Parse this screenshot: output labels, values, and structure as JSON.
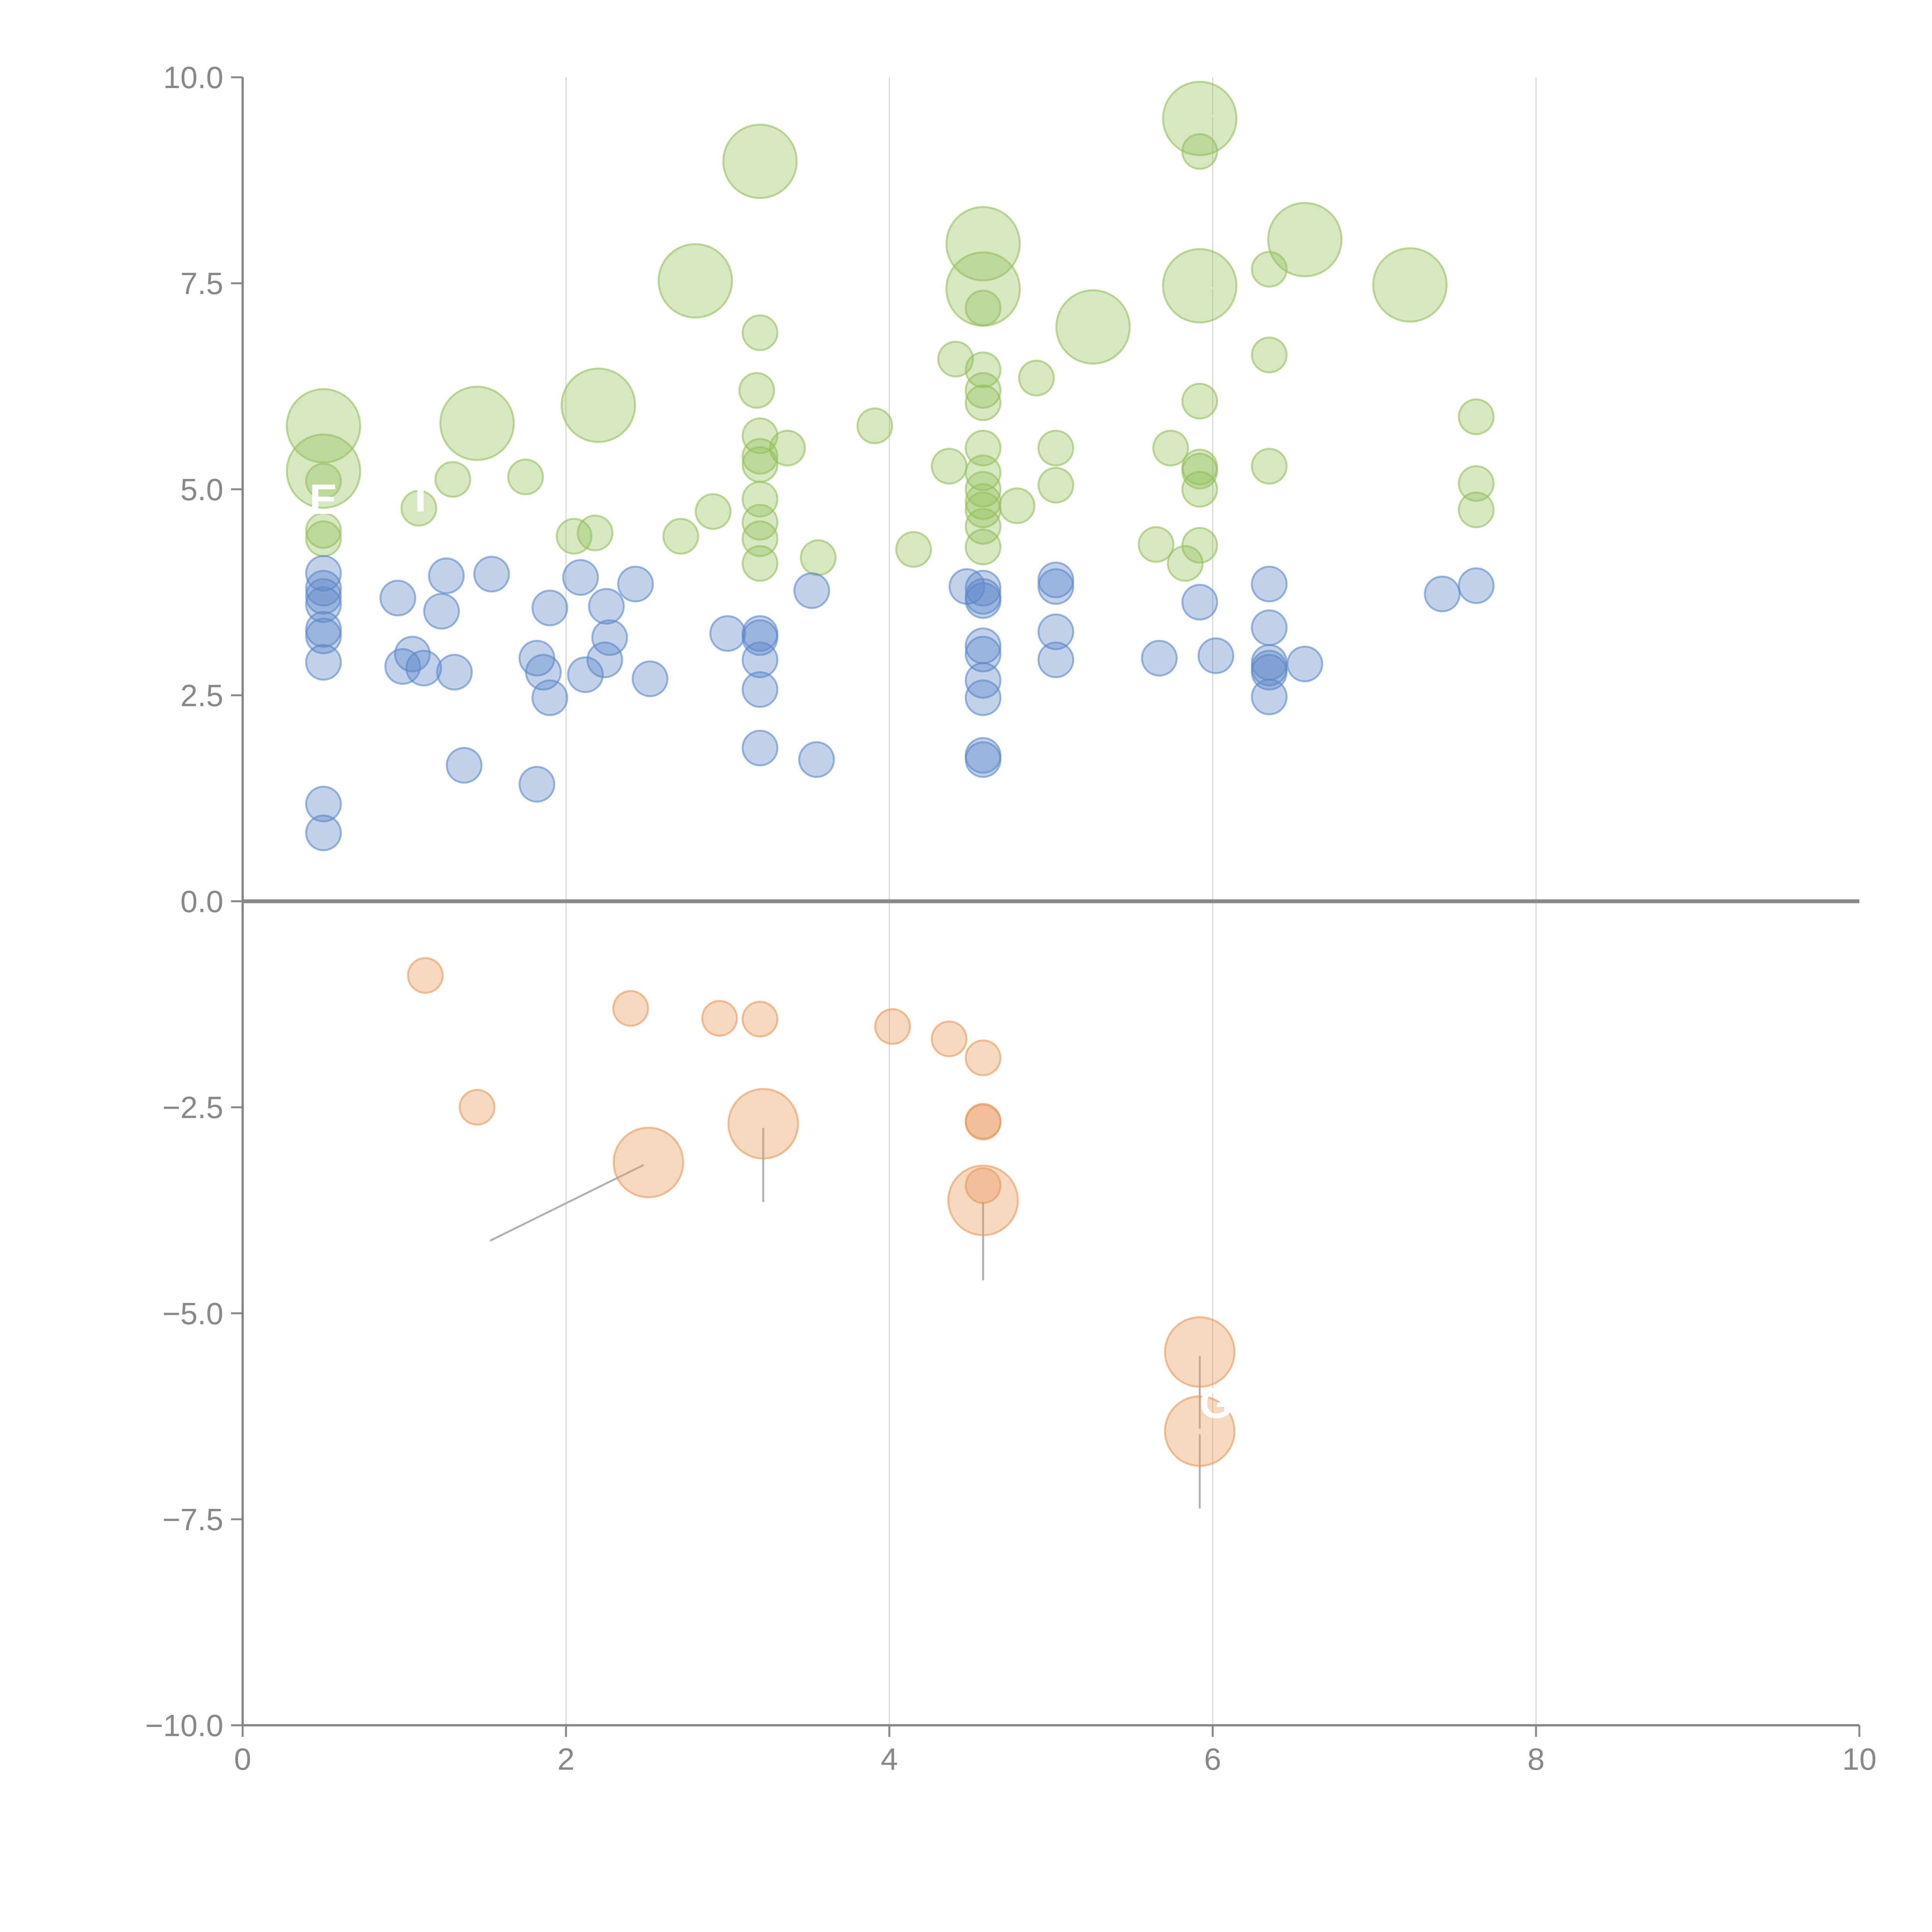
{
  "chart_data": {
    "type": "scatter",
    "title": "",
    "xlabel": "",
    "ylabel": "",
    "xlim": [
      0,
      10
    ],
    "ylim": [
      -10,
      10
    ],
    "x_ticks": [
      "0",
      "2",
      "4",
      "6",
      "8",
      "10"
    ],
    "y_ticks": [
      "10.0",
      "7.5",
      "5.0",
      "2.5",
      "0.0",
      "−2.5",
      "−5.0",
      "−7.5",
      "−10.0"
    ],
    "grid": "vertical lines at even x values",
    "colors": {
      "green": "#93bf5c",
      "blue": "#5b87c7",
      "orange": "#e6995a",
      "axis": "#888888"
    },
    "series": [
      {
        "color_key": "green",
        "points": [
          {
            "x": 0.5,
            "y": 5.77,
            "s": 3
          },
          {
            "x": 0.5,
            "y": 5.22,
            "s": 3
          },
          {
            "x": 0.5,
            "y": 5.1,
            "s": 1
          },
          {
            "x": 0.5,
            "y": 4.5,
            "s": 1
          },
          {
            "x": 0.5,
            "y": 4.4,
            "s": 1
          },
          {
            "x": 1.09,
            "y": 4.77,
            "s": 1
          },
          {
            "x": 1.3,
            "y": 5.12,
            "s": 1
          },
          {
            "x": 1.45,
            "y": 5.8,
            "s": 3
          },
          {
            "x": 1.75,
            "y": 5.15,
            "s": 1
          },
          {
            "x": 2.05,
            "y": 4.43,
            "s": 1
          },
          {
            "x": 2.18,
            "y": 4.47,
            "s": 1
          },
          {
            "x": 2.2,
            "y": 6.02,
            "s": 3
          },
          {
            "x": 2.71,
            "y": 4.43,
            "s": 1
          },
          {
            "x": 2.8,
            "y": 7.53,
            "s": 3
          },
          {
            "x": 2.91,
            "y": 4.73,
            "s": 1
          },
          {
            "x": 3.2,
            "y": 8.98,
            "s": 3
          },
          {
            "x": 3.2,
            "y": 6.9,
            "s": 1
          },
          {
            "x": 3.18,
            "y": 6.2,
            "s": 1
          },
          {
            "x": 3.2,
            "y": 5.65,
            "s": 1
          },
          {
            "x": 3.2,
            "y": 5.4,
            "s": 1
          },
          {
            "x": 3.2,
            "y": 5.3,
            "s": 1
          },
          {
            "x": 3.2,
            "y": 4.88,
            "s": 1
          },
          {
            "x": 3.2,
            "y": 4.6,
            "s": 1
          },
          {
            "x": 3.2,
            "y": 4.4,
            "s": 1
          },
          {
            "x": 3.2,
            "y": 4.1,
            "s": 1
          },
          {
            "x": 3.37,
            "y": 5.5,
            "s": 1
          },
          {
            "x": 3.56,
            "y": 4.17,
            "s": 1
          },
          {
            "x": 3.91,
            "y": 5.77,
            "s": 1
          },
          {
            "x": 4.15,
            "y": 4.27,
            "s": 1
          },
          {
            "x": 4.37,
            "y": 5.28,
            "s": 1
          },
          {
            "x": 4.41,
            "y": 6.58,
            "s": 1
          },
          {
            "x": 4.58,
            "y": 7.98,
            "s": 3
          },
          {
            "x": 4.58,
            "y": 7.43,
            "s": 3
          },
          {
            "x": 4.58,
            "y": 7.2,
            "s": 1
          },
          {
            "x": 4.58,
            "y": 6.45,
            "s": 1
          },
          {
            "x": 4.58,
            "y": 6.2,
            "s": 1
          },
          {
            "x": 4.58,
            "y": 6.05,
            "s": 1
          },
          {
            "x": 4.58,
            "y": 5.5,
            "s": 1
          },
          {
            "x": 4.58,
            "y": 5.2,
            "s": 1
          },
          {
            "x": 4.58,
            "y": 5.0,
            "s": 1
          },
          {
            "x": 4.58,
            "y": 4.85,
            "s": 1
          },
          {
            "x": 4.58,
            "y": 4.75,
            "s": 1
          },
          {
            "x": 4.58,
            "y": 4.55,
            "s": 1
          },
          {
            "x": 4.58,
            "y": 4.3,
            "s": 1
          },
          {
            "x": 4.79,
            "y": 4.8,
            "s": 1
          },
          {
            "x": 4.91,
            "y": 6.35,
            "s": 1
          },
          {
            "x": 5.03,
            "y": 5.5,
            "s": 1
          },
          {
            "x": 5.03,
            "y": 5.05,
            "s": 1
          },
          {
            "x": 5.26,
            "y": 6.97,
            "s": 3
          },
          {
            "x": 5.65,
            "y": 4.33,
            "s": 1
          },
          {
            "x": 5.74,
            "y": 5.5,
            "s": 1
          },
          {
            "x": 5.83,
            "y": 4.1,
            "s": 1
          },
          {
            "x": 5.92,
            "y": 9.5,
            "s": 3
          },
          {
            "x": 5.92,
            "y": 9.1,
            "s": 1
          },
          {
            "x": 5.92,
            "y": 7.47,
            "s": 3
          },
          {
            "x": 5.92,
            "y": 6.07,
            "s": 1
          },
          {
            "x": 5.92,
            "y": 5.27,
            "s": 1
          },
          {
            "x": 5.92,
            "y": 5.22,
            "s": 1
          },
          {
            "x": 5.92,
            "y": 5.0,
            "s": 1
          },
          {
            "x": 5.92,
            "y": 4.32,
            "s": 1
          },
          {
            "x": 6.35,
            "y": 7.67,
            "s": 1
          },
          {
            "x": 6.35,
            "y": 6.63,
            "s": 1
          },
          {
            "x": 6.35,
            "y": 5.28,
            "s": 1
          },
          {
            "x": 6.57,
            "y": 8.03,
            "s": 3
          },
          {
            "x": 7.22,
            "y": 7.48,
            "s": 3
          },
          {
            "x": 7.63,
            "y": 5.88,
            "s": 1
          },
          {
            "x": 7.63,
            "y": 5.07,
            "s": 1
          },
          {
            "x": 7.63,
            "y": 4.75,
            "s": 1
          }
        ]
      },
      {
        "color_key": "blue",
        "points": [
          {
            "x": 0.5,
            "y": 3.98,
            "s": 1
          },
          {
            "x": 0.5,
            "y": 3.8,
            "s": 1
          },
          {
            "x": 0.5,
            "y": 3.7,
            "s": 1
          },
          {
            "x": 0.5,
            "y": 3.6,
            "s": 1
          },
          {
            "x": 0.5,
            "y": 3.3,
            "s": 1
          },
          {
            "x": 0.5,
            "y": 3.22,
            "s": 1
          },
          {
            "x": 0.5,
            "y": 2.9,
            "s": 1
          },
          {
            "x": 0.5,
            "y": 1.18,
            "s": 1
          },
          {
            "x": 0.5,
            "y": 0.83,
            "s": 1
          },
          {
            "x": 0.96,
            "y": 3.68,
            "s": 1
          },
          {
            "x": 0.99,
            "y": 2.85,
            "s": 1
          },
          {
            "x": 1.05,
            "y": 3.0,
            "s": 1
          },
          {
            "x": 1.12,
            "y": 2.83,
            "s": 1
          },
          {
            "x": 1.23,
            "y": 3.52,
            "s": 1
          },
          {
            "x": 1.26,
            "y": 3.95,
            "s": 1
          },
          {
            "x": 1.31,
            "y": 2.78,
            "s": 1
          },
          {
            "x": 1.37,
            "y": 1.65,
            "s": 1
          },
          {
            "x": 1.54,
            "y": 3.97,
            "s": 1
          },
          {
            "x": 1.82,
            "y": 2.95,
            "s": 1
          },
          {
            "x": 1.82,
            "y": 1.42,
            "s": 1
          },
          {
            "x": 1.86,
            "y": 2.78,
            "s": 1
          },
          {
            "x": 1.9,
            "y": 3.56,
            "s": 1
          },
          {
            "x": 1.9,
            "y": 2.47,
            "s": 1
          },
          {
            "x": 2.09,
            "y": 3.93,
            "s": 1
          },
          {
            "x": 2.12,
            "y": 2.75,
            "s": 1
          },
          {
            "x": 2.24,
            "y": 2.93,
            "s": 1
          },
          {
            "x": 2.25,
            "y": 3.58,
            "s": 1
          },
          {
            "x": 2.27,
            "y": 3.2,
            "s": 1
          },
          {
            "x": 2.43,
            "y": 3.85,
            "s": 1
          },
          {
            "x": 2.52,
            "y": 2.7,
            "s": 1
          },
          {
            "x": 3.0,
            "y": 3.25,
            "s": 1
          },
          {
            "x": 3.2,
            "y": 3.25,
            "s": 1
          },
          {
            "x": 3.2,
            "y": 3.2,
            "s": 1
          },
          {
            "x": 3.2,
            "y": 2.93,
            "s": 1
          },
          {
            "x": 3.2,
            "y": 2.57,
            "s": 1
          },
          {
            "x": 3.2,
            "y": 1.86,
            "s": 1
          },
          {
            "x": 3.52,
            "y": 3.77,
            "s": 1
          },
          {
            "x": 3.55,
            "y": 1.72,
            "s": 1
          },
          {
            "x": 4.48,
            "y": 3.82,
            "s": 1
          },
          {
            "x": 4.58,
            "y": 3.8,
            "s": 1
          },
          {
            "x": 4.58,
            "y": 3.7,
            "s": 1
          },
          {
            "x": 4.58,
            "y": 3.65,
            "s": 1
          },
          {
            "x": 4.58,
            "y": 3.1,
            "s": 1
          },
          {
            "x": 4.58,
            "y": 3.0,
            "s": 1
          },
          {
            "x": 4.58,
            "y": 2.68,
            "s": 1
          },
          {
            "x": 4.58,
            "y": 2.47,
            "s": 1
          },
          {
            "x": 4.58,
            "y": 1.77,
            "s": 1
          },
          {
            "x": 4.58,
            "y": 1.72,
            "s": 1
          },
          {
            "x": 5.03,
            "y": 3.9,
            "s": 1
          },
          {
            "x": 5.03,
            "y": 3.82,
            "s": 1
          },
          {
            "x": 5.03,
            "y": 3.27,
            "s": 1
          },
          {
            "x": 5.03,
            "y": 2.93,
            "s": 1
          },
          {
            "x": 5.67,
            "y": 2.95,
            "s": 1
          },
          {
            "x": 5.92,
            "y": 3.63,
            "s": 1
          },
          {
            "x": 6.02,
            "y": 2.98,
            "s": 1
          },
          {
            "x": 6.35,
            "y": 3.85,
            "s": 1
          },
          {
            "x": 6.35,
            "y": 3.32,
            "s": 1
          },
          {
            "x": 6.35,
            "y": 2.9,
            "s": 1
          },
          {
            "x": 6.35,
            "y": 2.83,
            "s": 1
          },
          {
            "x": 6.35,
            "y": 2.78,
            "s": 1
          },
          {
            "x": 6.35,
            "y": 2.48,
            "s": 1
          },
          {
            "x": 6.57,
            "y": 2.88,
            "s": 1
          },
          {
            "x": 7.42,
            "y": 3.73,
            "s": 1
          },
          {
            "x": 7.63,
            "y": 3.83,
            "s": 1
          }
        ]
      },
      {
        "color_key": "orange",
        "points": [
          {
            "x": 1.13,
            "y": -0.9,
            "s": 1
          },
          {
            "x": 1.45,
            "y": -2.5,
            "s": 1
          },
          {
            "x": 2.4,
            "y": -1.3,
            "s": 1
          },
          {
            "x": 2.51,
            "y": -3.17,
            "s": 2
          },
          {
            "x": 2.95,
            "y": -1.42,
            "s": 1
          },
          {
            "x": 3.2,
            "y": -1.43,
            "s": 1
          },
          {
            "x": 3.22,
            "y": -2.7,
            "s": 2
          },
          {
            "x": 4.02,
            "y": -1.52,
            "s": 1
          },
          {
            "x": 4.37,
            "y": -1.67,
            "s": 1
          },
          {
            "x": 4.58,
            "y": -1.9,
            "s": 1
          },
          {
            "x": 4.58,
            "y": -2.68,
            "s": 1
          },
          {
            "x": 4.58,
            "y": -2.67,
            "s": 1
          },
          {
            "x": 4.58,
            "y": -3.45,
            "s": 1
          },
          {
            "x": 4.58,
            "y": -3.63,
            "s": 2
          },
          {
            "x": 5.92,
            "y": -5.47,
            "s": 2
          },
          {
            "x": 5.92,
            "y": -6.43,
            "s": 2
          }
        ]
      }
    ],
    "leader_lines": [
      {
        "from": [
          2.48,
          -3.2
        ],
        "to": [
          1.53,
          -4.12
        ],
        "color": "#b0b0b0"
      },
      {
        "from": [
          3.22,
          -2.75
        ],
        "to": [
          3.22,
          -3.65
        ],
        "color": "#b0b0b0"
      },
      {
        "from": [
          4.58,
          -3.65
        ],
        "to": [
          4.58,
          -4.6
        ],
        "color": "#b0b0b0"
      },
      {
        "from": [
          5.92,
          -5.52
        ],
        "to": [
          5.92,
          -6.4
        ],
        "color": "#b0b0b0"
      },
      {
        "from": [
          5.92,
          -6.47
        ],
        "to": [
          5.92,
          -7.37
        ],
        "color": "#b0b0b0"
      },
      {
        "from": [
          0.55,
          5.82
        ],
        "to": [
          0.7,
          5.95
        ],
        "color": "#ffffff"
      },
      {
        "from": [
          1.48,
          5.75
        ],
        "to": [
          1.66,
          5.58
        ],
        "color": "#ffffff"
      },
      {
        "from": [
          2.23,
          6.03
        ],
        "to": [
          2.43,
          6.06
        ],
        "color": "#ffffff"
      },
      {
        "from": [
          2.78,
          7.6
        ],
        "to": [
          2.73,
          7.9
        ],
        "color": "#ffffff"
      },
      {
        "from": [
          3.23,
          9.03
        ],
        "to": [
          3.4,
          9.2
        ],
        "color": "#ffffff"
      },
      {
        "from": [
          3.18,
          6.18
        ],
        "to": [
          3.38,
          6.22
        ],
        "color": "#ffffff"
      },
      {
        "from": [
          4.62,
          7.4
        ],
        "to": [
          4.8,
          7.25
        ],
        "color": "#ffffff"
      },
      {
        "from": [
          5.3,
          6.95
        ],
        "to": [
          5.4,
          6.7
        ],
        "color": "#ffffff"
      },
      {
        "from": [
          5.96,
          9.52
        ],
        "to": [
          6.15,
          9.55
        ],
        "color": "#ffffff"
      },
      {
        "from": [
          5.96,
          7.45
        ],
        "to": [
          6.15,
          7.4
        ],
        "color": "#ffffff"
      },
      {
        "from": [
          6.6,
          8.0
        ],
        "to": [
          6.8,
          7.85
        ],
        "color": "#ffffff"
      },
      {
        "from": [
          7.2,
          7.45
        ],
        "to": [
          7.3,
          7.2
        ],
        "color": "#ffffff"
      },
      {
        "from": [
          5.92,
          5.25
        ],
        "to": [
          5.78,
          5.55
        ],
        "color": "#ffffff"
      }
    ],
    "annotations": [
      {
        "text": "E",
        "x": 0.5,
        "y": 4.7
      },
      {
        "text": "T",
        "x": 1.1,
        "y": 4.73
      },
      {
        "text": "G",
        "x": 6.02,
        "y": -6.27
      }
    ]
  }
}
